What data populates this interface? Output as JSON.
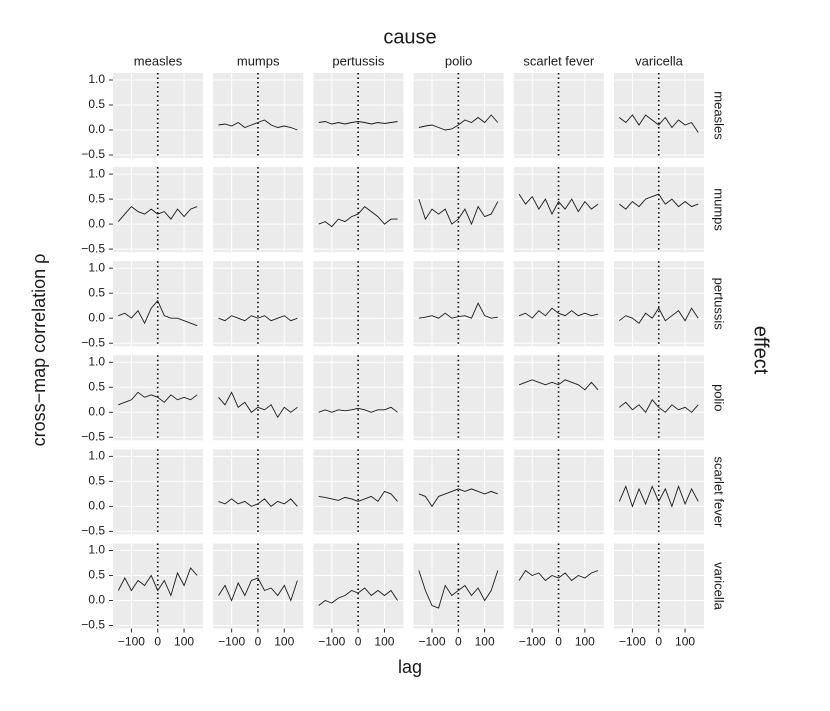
{
  "chart_data": {
    "type": "line",
    "col_title": "cause",
    "row_title": "effect",
    "x_label": "lag",
    "y_label": "cross−map correlation ρ",
    "columns": [
      "measles",
      "mumps",
      "pertussis",
      "polio",
      "scarlet fever",
      "varicella"
    ],
    "rows": [
      "measles",
      "mumps",
      "pertussis",
      "polio",
      "scarlet fever",
      "varicella"
    ],
    "x": [
      -150,
      -125,
      -100,
      -75,
      -50,
      -25,
      0,
      25,
      50,
      75,
      100,
      125,
      150
    ],
    "xlim": [
      -170,
      172
    ],
    "xticks": [
      {
        "value": -100,
        "label": "−100"
      },
      0,
      100
    ],
    "ylim": [
      -0.56,
      1.14
    ],
    "yticks": [
      {
        "value": -0.5,
        "label": "−0.5"
      },
      {
        "value": 0,
        "label": "0.0"
      },
      0.5,
      {
        "value": 1,
        "label": "1.0"
      }
    ],
    "vline": 0,
    "grid": true,
    "color": "#1a1a1a",
    "panels": [
      [
        null,
        [
          0.1,
          0.12,
          0.08,
          0.15,
          0.05,
          0.1,
          0.15,
          0.2,
          0.1,
          0.05,
          0.08,
          0.05,
          0.0
        ],
        [
          0.15,
          0.17,
          0.12,
          0.15,
          0.12,
          0.15,
          0.17,
          0.15,
          0.12,
          0.15,
          0.13,
          0.15,
          0.17
        ],
        [
          0.05,
          0.08,
          0.1,
          0.05,
          0.0,
          0.02,
          0.1,
          0.2,
          0.15,
          0.25,
          0.15,
          0.3,
          0.15
        ],
        null,
        [
          0.25,
          0.15,
          0.3,
          0.1,
          0.3,
          0.2,
          0.1,
          0.25,
          0.05,
          0.2,
          0.1,
          0.15,
          -0.05
        ]
      ],
      [
        [
          0.05,
          0.2,
          0.35,
          0.25,
          0.2,
          0.3,
          0.2,
          0.25,
          0.1,
          0.3,
          0.15,
          0.3,
          0.35
        ],
        null,
        [
          0.0,
          0.05,
          -0.05,
          0.1,
          0.05,
          0.15,
          0.2,
          0.35,
          0.25,
          0.15,
          0.0,
          0.1,
          0.1
        ],
        [
          0.5,
          0.1,
          0.3,
          0.2,
          0.3,
          0.0,
          0.1,
          0.3,
          0.0,
          0.35,
          0.15,
          0.2,
          0.45
        ],
        [
          0.6,
          0.4,
          0.55,
          0.3,
          0.5,
          0.2,
          0.45,
          0.3,
          0.5,
          0.25,
          0.45,
          0.3,
          0.4
        ],
        [
          0.4,
          0.3,
          0.45,
          0.35,
          0.5,
          0.55,
          0.6,
          0.4,
          0.5,
          0.35,
          0.45,
          0.35,
          0.4
        ]
      ],
      [
        [
          0.05,
          0.1,
          0.0,
          0.15,
          -0.1,
          0.2,
          0.35,
          0.05,
          0.0,
          0.0,
          -0.05,
          -0.1,
          -0.15
        ],
        [
          0.0,
          -0.05,
          0.05,
          0.0,
          -0.05,
          0.05,
          0.0,
          0.05,
          -0.05,
          0.0,
          0.05,
          -0.05,
          0.0
        ],
        null,
        [
          0.0,
          0.02,
          0.05,
          0.0,
          0.1,
          0.0,
          0.03,
          0.05,
          0.0,
          0.3,
          0.05,
          0.0,
          0.02
        ],
        [
          0.05,
          0.1,
          0.0,
          0.15,
          0.05,
          0.2,
          0.1,
          0.05,
          0.15,
          0.05,
          0.1,
          0.05,
          0.08
        ],
        [
          -0.05,
          0.05,
          0.0,
          -0.1,
          0.1,
          0.0,
          0.2,
          -0.05,
          0.05,
          0.15,
          -0.05,
          0.2,
          0.0
        ]
      ],
      [
        [
          0.15,
          0.2,
          0.25,
          0.4,
          0.3,
          0.35,
          0.3,
          0.2,
          0.35,
          0.25,
          0.3,
          0.25,
          0.35
        ],
        [
          0.3,
          0.15,
          0.4,
          0.1,
          0.2,
          0.0,
          0.1,
          0.05,
          0.15,
          -0.1,
          0.1,
          0.0,
          0.1
        ],
        [
          0.0,
          0.05,
          0.0,
          0.05,
          0.03,
          0.05,
          0.08,
          0.05,
          0.0,
          0.05,
          0.05,
          0.1,
          0.0
        ],
        null,
        [
          0.55,
          0.6,
          0.65,
          0.6,
          0.55,
          0.6,
          0.55,
          0.65,
          0.6,
          0.55,
          0.45,
          0.6,
          0.45
        ],
        [
          0.1,
          0.2,
          0.05,
          0.15,
          0.0,
          0.25,
          0.1,
          0.0,
          0.15,
          0.05,
          0.1,
          0.0,
          0.15
        ]
      ],
      [
        null,
        [
          0.1,
          0.05,
          0.15,
          0.05,
          0.1,
          0.0,
          0.05,
          0.15,
          0.0,
          0.1,
          0.05,
          0.15,
          0.0
        ],
        [
          0.2,
          0.18,
          0.15,
          0.12,
          0.18,
          0.15,
          0.1,
          0.15,
          0.2,
          0.1,
          0.3,
          0.25,
          0.1
        ],
        [
          0.25,
          0.2,
          0.0,
          0.2,
          0.25,
          0.3,
          0.35,
          0.3,
          0.35,
          0.3,
          0.25,
          0.3,
          0.25
        ],
        null,
        [
          0.1,
          0.4,
          0.0,
          0.35,
          0.05,
          0.4,
          0.1,
          0.35,
          0.0,
          0.4,
          0.05,
          0.35,
          0.1
        ]
      ],
      [
        [
          0.2,
          0.45,
          0.2,
          0.4,
          0.3,
          0.5,
          0.2,
          0.4,
          0.1,
          0.55,
          0.3,
          0.65,
          0.5
        ],
        [
          0.1,
          0.3,
          0.0,
          0.35,
          0.1,
          0.4,
          0.45,
          0.2,
          0.25,
          0.1,
          0.3,
          0.0,
          0.4
        ],
        [
          -0.1,
          0.0,
          -0.05,
          0.05,
          0.1,
          0.2,
          0.15,
          0.25,
          0.1,
          0.2,
          0.1,
          0.2,
          0.0
        ],
        [
          0.6,
          0.2,
          -0.1,
          -0.15,
          0.3,
          0.1,
          0.2,
          0.3,
          0.1,
          0.25,
          0.0,
          0.2,
          0.6
        ],
        [
          0.4,
          0.6,
          0.5,
          0.55,
          0.4,
          0.5,
          0.45,
          0.55,
          0.4,
          0.5,
          0.45,
          0.55,
          0.6
        ],
        null
      ]
    ]
  }
}
